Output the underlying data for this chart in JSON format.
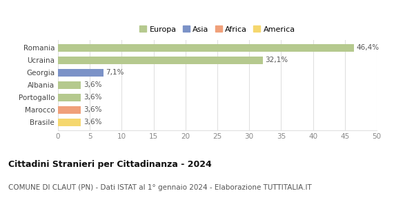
{
  "categories": [
    "Brasile",
    "Marocco",
    "Portogallo",
    "Albania",
    "Georgia",
    "Ucraina",
    "Romania"
  ],
  "values": [
    3.6,
    3.6,
    3.6,
    3.6,
    7.1,
    32.1,
    46.4
  ],
  "labels": [
    "3,6%",
    "3,6%",
    "3,6%",
    "3,6%",
    "7,1%",
    "32,1%",
    "46,4%"
  ],
  "colors": [
    "#f5d76e",
    "#f0a07a",
    "#b5c98e",
    "#b5c98e",
    "#7b92c7",
    "#b5c98e",
    "#b5c98e"
  ],
  "legend_entries": [
    {
      "label": "Europa",
      "color": "#b5c98e"
    },
    {
      "label": "Asia",
      "color": "#7b92c7"
    },
    {
      "label": "Africa",
      "color": "#f0a07a"
    },
    {
      "label": "America",
      "color": "#f5d76e"
    }
  ],
  "xlim": [
    0,
    50
  ],
  "xticks": [
    0,
    5,
    10,
    15,
    20,
    25,
    30,
    35,
    40,
    45,
    50
  ],
  "title": "Cittadini Stranieri per Cittadinanza - 2024",
  "subtitle": "COMUNE DI CLAUT (PN) - Dati ISTAT al 1° gennaio 2024 - Elaborazione TUTTITALIA.IT",
  "title_fontsize": 9,
  "subtitle_fontsize": 7.5,
  "background_color": "#ffffff",
  "grid_color": "#e0e0e0",
  "bar_height": 0.6,
  "label_fontsize": 7.5,
  "tick_fontsize": 7.5,
  "legend_fontsize": 8
}
